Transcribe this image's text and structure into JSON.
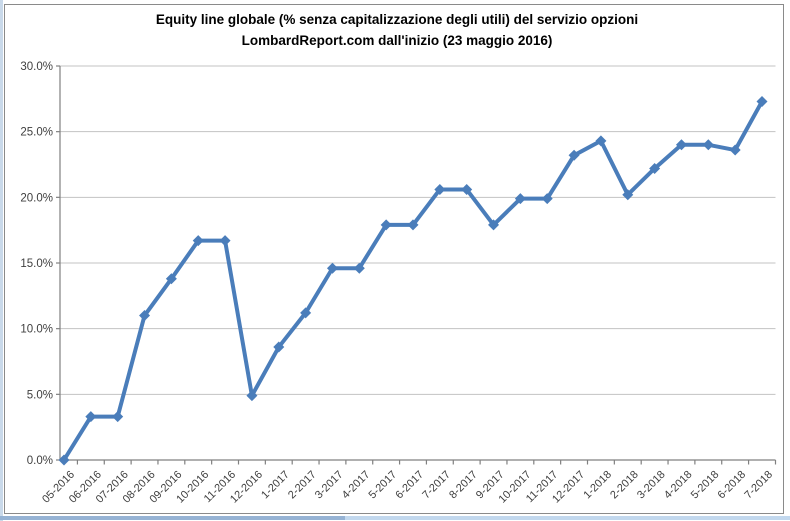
{
  "window": {
    "edge_left_color": "#c9d9ea",
    "bottom_strip_left_color": "#96b3d4",
    "bottom_strip_right_color": "#c2d8ee",
    "frame_border_color": "#8a8a8a",
    "chart_background": "#ffffff"
  },
  "chart_data": {
    "type": "line",
    "title_line1": "Equity line globale (% senza capitalizzazione degli utili) del servizio opzioni",
    "title_line2": "LombardReport.com dall'inizio (23 maggio 2016)",
    "categories": [
      "05-2016",
      "06-2016",
      "07-2016",
      "08-2016",
      "09-2016",
      "10-2016",
      "11-2016",
      "12-2016",
      "1-2017",
      "2-2017",
      "3-2017",
      "4-2017",
      "5-2017",
      "6-2017",
      "7-2017",
      "8-2017",
      "9-2017",
      "10-2017",
      "11-2017",
      "12-2017",
      "1-2018",
      "2-2018",
      "3-2018",
      "4-2018",
      "5-2018",
      "6-2018",
      "7-2018"
    ],
    "values": [
      0.0,
      3.3,
      3.3,
      11.0,
      13.8,
      16.7,
      16.7,
      4.9,
      8.6,
      11.2,
      14.6,
      14.6,
      17.9,
      17.9,
      20.6,
      20.6,
      17.9,
      19.9,
      19.9,
      23.2,
      24.3,
      20.2,
      22.2,
      24.0,
      24.0,
      23.6,
      27.3
    ],
    "series_color": "#4a7dba",
    "xlabel": "",
    "ylabel": "",
    "ylim": [
      0,
      30
    ],
    "ytick_step": 5,
    "ytick_labels": [
      "0.0%",
      "5.0%",
      "10.0%",
      "15.0%",
      "20.0%",
      "25.0%",
      "30.0%"
    ],
    "grid": true,
    "legend_position": "none",
    "gridline_color": "#c3c3c3",
    "axis_color": "#808080",
    "tick_label_color": "#3f3f3f",
    "marker": "diamond",
    "x_label_rotation_deg": -45
  }
}
